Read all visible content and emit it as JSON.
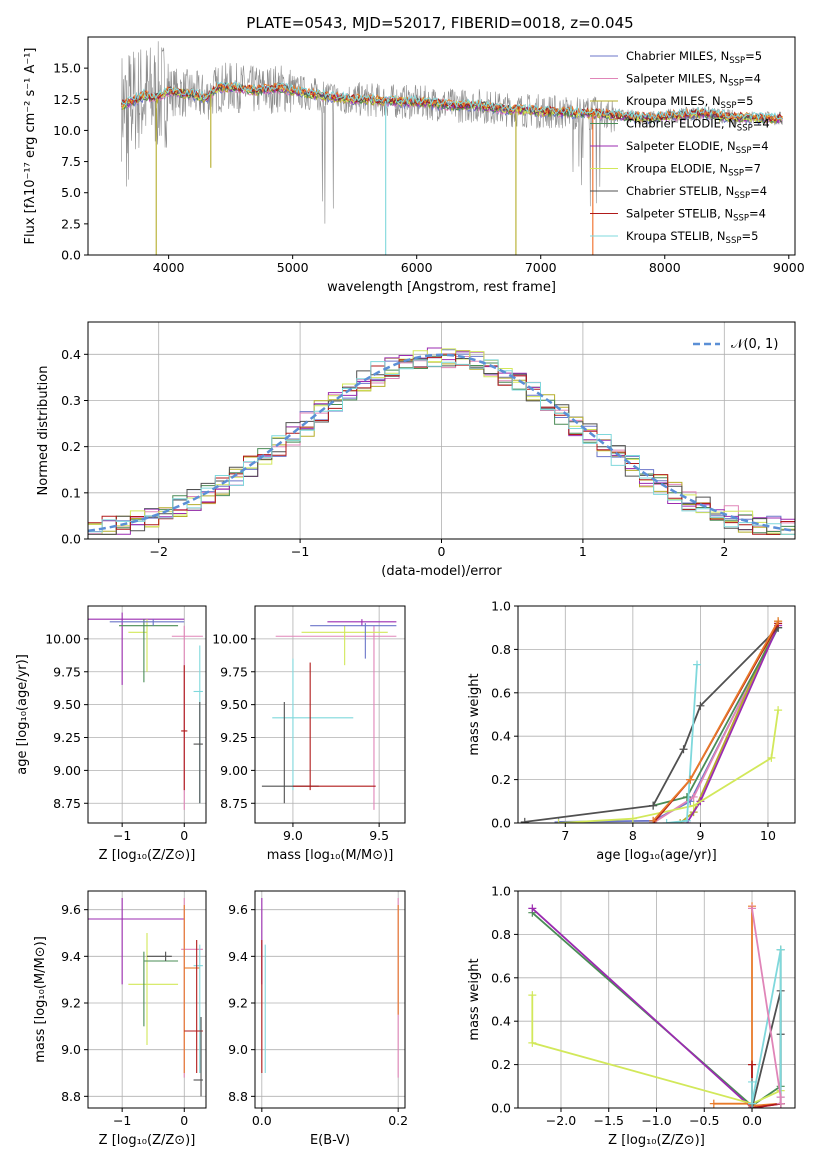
{
  "title": "PLATE=0543, MJD=52017, FIBERID=0018, z=0.045",
  "colors": {
    "series": [
      "#6b75c9",
      "#e085b8",
      "#b5ad2a",
      "#4a8c56",
      "#9b2bb0",
      "#d2e85a",
      "#505050",
      "#b01a1a",
      "#7fd8dc"
    ],
    "accent": [
      "#e87a2a",
      "#f06b24"
    ],
    "spectrum": "#8c8c8c",
    "normal": "#5b8fd6"
  },
  "legend": [
    {
      "text": "Chabrier MILES, N",
      "sub": "SSP",
      "n": "=5"
    },
    {
      "text": "Salpeter MILES, N",
      "sub": "SSP",
      "n": "=4"
    },
    {
      "text": "Kroupa MILES, N",
      "sub": "SSP",
      "n": "=5"
    },
    {
      "text": "Chabrier ELODIE, N",
      "sub": "SSP",
      "n": "=4"
    },
    {
      "text": "Salpeter ELODIE, N",
      "sub": "SSP",
      "n": "=4"
    },
    {
      "text": "Kroupa ELODIE, N",
      "sub": "SSP",
      "n": "=7"
    },
    {
      "text": "Chabrier STELIB, N",
      "sub": "SSP",
      "n": "=4"
    },
    {
      "text": "Salpeter STELIB, N",
      "sub": "SSP",
      "n": "=4"
    },
    {
      "text": "Kroupa STELIB, N",
      "sub": "SSP",
      "n": "=5"
    }
  ],
  "chart_data": [
    {
      "type": "line",
      "id": "spectrum",
      "title": "PLATE=0543, MJD=52017, FIBERID=0018, z=0.045",
      "xlabel": "wavelength [Angstrom, rest frame]",
      "ylabel": "Flux [fλ10⁻¹⁷ erg cm⁻² s⁻¹ A⁻¹]",
      "xlim": [
        3350,
        9050
      ],
      "ylim": [
        0,
        17.5
      ],
      "xticks": [
        4000,
        5000,
        6000,
        7000,
        8000,
        9000
      ],
      "yticks": [
        0.0,
        2.5,
        5.0,
        7.5,
        10.0,
        12.5,
        15.0
      ],
      "grid": false,
      "legend_position": "right",
      "continuum": {
        "x": [
          3620,
          3700,
          3800,
          3900,
          4000,
          4100,
          4200,
          4300,
          4400,
          4500,
          4700,
          4900,
          5100,
          5300,
          5500,
          5700,
          5900,
          6100,
          6300,
          6500,
          6700,
          6900,
          7100,
          7300,
          7500,
          7700,
          7900,
          8100,
          8300,
          8500,
          8700,
          8950
        ],
        "y": [
          12.0,
          12.3,
          12.8,
          12.6,
          13.2,
          13.0,
          12.9,
          12.6,
          13.4,
          13.5,
          13.2,
          13.4,
          13.0,
          12.7,
          12.5,
          12.4,
          12.3,
          12.2,
          12.0,
          12.0,
          11.7,
          11.6,
          11.5,
          11.4,
          11.3,
          11.1,
          11.0,
          11.2,
          11.4,
          11.1,
          11.0,
          10.9
        ]
      },
      "model_dips": [
        {
          "x": 3900,
          "y": 0.0
        },
        {
          "x": 4340,
          "y": 7.0
        },
        {
          "x": 5750,
          "y": 0.0
        },
        {
          "x": 6800,
          "y": 0.0
        },
        {
          "x": 7420,
          "y": 0.0
        }
      ]
    },
    {
      "type": "step",
      "id": "residuals",
      "xlabel": "(data-model)/error",
      "ylabel": "Normed distribution",
      "xlim": [
        -2.5,
        2.5
      ],
      "ylim": [
        0.0,
        0.47
      ],
      "xticks": [
        -2,
        -1,
        0,
        1,
        2
      ],
      "yticks": [
        0.0,
        0.1,
        0.2,
        0.3,
        0.4
      ],
      "grid": true,
      "legend_position": "top-right",
      "reference": {
        "name": "𝒩(0, 1)",
        "mean": 0,
        "sigma": 1
      },
      "bin_width": 0.1
    },
    {
      "type": "errorbar",
      "id": "age-vs-Z",
      "xlabel": "Z [log₁₀(Z/Z⊙)]",
      "ylabel": "age  [log₁₀(age/yr)]",
      "xlim": [
        -1.55,
        0.35
      ],
      "ylim": [
        8.6,
        10.25
      ],
      "xticks": [
        -1,
        0
      ],
      "yticks": [
        8.75,
        9.0,
        9.25,
        9.5,
        9.75,
        10.0
      ],
      "grid": true,
      "points": [
        {
          "s": 4,
          "x": -1.0,
          "y": 10.15,
          "xe": [
            -1.55,
            0.0
          ],
          "ye": [
            9.65,
            10.2
          ]
        },
        {
          "s": 5,
          "x": -0.6,
          "y": 10.05,
          "xe": [
            -0.9,
            -0.6
          ],
          "ye": [
            9.75,
            10.15
          ]
        },
        {
          "s": 3,
          "x": -0.65,
          "y": 10.1,
          "xe": [
            -1.05,
            -0.1
          ],
          "ye": [
            9.67,
            10.15
          ]
        },
        {
          "s": 0,
          "x": -0.5,
          "y": 10.13,
          "xe": [
            -1.2,
            0.0
          ],
          "ye": [
            10.1,
            10.15
          ]
        },
        {
          "s": 1,
          "x": 0.0,
          "y": 10.02,
          "xe": [
            -0.2,
            0.3
          ],
          "ye": [
            8.7,
            10.1
          ]
        },
        {
          "s": 8,
          "x": 0.25,
          "y": 9.6,
          "xe": [
            0.15,
            0.3
          ],
          "ye": [
            8.75,
            9.95
          ]
        },
        {
          "s": 6,
          "x": 0.25,
          "y": 9.2,
          "xe": [
            0.15,
            0.3
          ],
          "ye": [
            8.75,
            9.52
          ]
        },
        {
          "s": 7,
          "x": 0.0,
          "y": 9.3,
          "xe": [
            -0.05,
            0.05
          ],
          "ye": [
            8.85,
            9.8
          ]
        }
      ]
    },
    {
      "type": "errorbar",
      "id": "age-vs-mass",
      "xlabel": "mass [log₁₀(M/M⊙)]",
      "ylabel": "",
      "xlim": [
        8.78,
        9.65
      ],
      "ylim": [
        8.6,
        10.25
      ],
      "xticks": [
        9.0,
        9.5
      ],
      "yticks": [
        8.75,
        9.0,
        9.25,
        9.5,
        9.75,
        10.0
      ],
      "grid": true,
      "points": [
        {
          "s": 1,
          "x": 9.47,
          "y": 10.02,
          "xe": [
            8.9,
            9.6
          ],
          "ye": [
            8.7,
            10.1
          ]
        },
        {
          "s": 5,
          "x": 9.3,
          "y": 10.05,
          "xe": [
            9.05,
            9.55
          ],
          "ye": [
            9.8,
            10.1
          ]
        },
        {
          "s": 4,
          "x": 9.4,
          "y": 10.13,
          "xe": [
            9.2,
            9.6
          ],
          "ye": [
            10.1,
            10.15
          ]
        },
        {
          "s": 0,
          "x": 9.42,
          "y": 10.1,
          "xe": [
            9.1,
            9.6
          ],
          "ye": [
            9.85,
            10.12
          ]
        },
        {
          "s": 8,
          "x": 9.0,
          "y": 9.4,
          "xe": [
            8.88,
            9.35
          ],
          "ye": [
            8.85,
            9.85
          ]
        },
        {
          "s": 6,
          "x": 8.95,
          "y": 8.88,
          "xe": [
            8.82,
            9.15
          ],
          "ye": [
            8.75,
            9.52
          ]
        },
        {
          "s": 7,
          "x": 9.1,
          "y": 8.88,
          "xe": [
            9.0,
            9.48
          ],
          "ye": [
            8.85,
            9.82
          ]
        }
      ]
    },
    {
      "type": "line",
      "id": "weight-vs-age",
      "xlabel": "age  [log₁₀(age/yr)]",
      "ylabel": "mass weight",
      "xlim": [
        6.3,
        10.4
      ],
      "ylim": [
        0.0,
        1.0
      ],
      "xticks": [
        7,
        8,
        9,
        10
      ],
      "yticks": [
        0.0,
        0.2,
        0.4,
        0.6,
        0.8,
        1.0
      ],
      "grid": true,
      "series": [
        {
          "s": 0,
          "x": [
            6.9,
            8.3,
            8.85,
            10.15
          ],
          "y": [
            0.005,
            0.01,
            0.1,
            0.9
          ]
        },
        {
          "s": 1,
          "x": [
            8.3,
            8.9,
            10.15
          ],
          "y": [
            0.0,
            0.12,
            0.91
          ]
        },
        {
          "s": 2,
          "x": [
            8.7,
            8.9,
            10.15
          ],
          "y": [
            0.0,
            0.05,
            0.93
          ]
        },
        {
          "s": 3,
          "x": [
            8.3,
            8.8,
            10.15
          ],
          "y": [
            0.08,
            0.12,
            0.9
          ]
        },
        {
          "s": 4,
          "x": [
            8.8,
            9.0,
            10.15
          ],
          "y": [
            0.0,
            0.1,
            0.91
          ]
        },
        {
          "s": 5,
          "x": [
            6.9,
            8.0,
            8.9,
            10.05,
            10.15
          ],
          "y": [
            0.0,
            0.02,
            0.08,
            0.3,
            0.52
          ]
        },
        {
          "s": 6,
          "x": [
            6.4,
            8.3,
            8.75,
            9.0,
            10.15
          ],
          "y": [
            0.005,
            0.08,
            0.34,
            0.54,
            0.9
          ]
        },
        {
          "s": 7,
          "x": [
            8.3,
            8.85,
            10.15
          ],
          "y": [
            0.0,
            0.2,
            0.92
          ]
        },
        {
          "s": 8,
          "x": [
            8.5,
            8.8,
            8.95
          ],
          "y": [
            0.0,
            0.01,
            0.73
          ]
        },
        {
          "s": 9,
          "x": [
            8.3,
            8.85,
            10.15
          ],
          "y": [
            0.01,
            0.2,
            0.93
          ]
        }
      ]
    },
    {
      "type": "errorbar",
      "id": "mass-vs-Z",
      "xlabel": "Z [log₁₀(Z/Z⊙)]",
      "ylabel": "mass [log₁₀(M/M⊙)]",
      "xlim": [
        -1.55,
        0.35
      ],
      "ylim": [
        8.75,
        9.68
      ],
      "xticks": [
        -1,
        0
      ],
      "yticks": [
        8.8,
        9.0,
        9.2,
        9.4,
        9.6
      ],
      "grid": true,
      "points": [
        {
          "s": 4,
          "x": -1.0,
          "y": 9.56,
          "xe": [
            -1.55,
            0.0
          ],
          "ye": [
            9.28,
            9.65
          ]
        },
        {
          "s": 5,
          "x": -0.6,
          "y": 9.28,
          "xe": [
            -0.9,
            -0.1
          ],
          "ye": [
            9.02,
            9.5
          ]
        },
        {
          "s": 3,
          "x": -0.65,
          "y": 9.38,
          "xe": [
            -0.65,
            -0.1
          ],
          "ye": [
            9.1,
            9.42
          ]
        },
        {
          "s": 6,
          "x": -0.3,
          "y": 9.4,
          "xe": [
            -0.6,
            -0.2
          ],
          "ye": [
            9.38,
            9.42
          ]
        },
        {
          "s": 1,
          "x": 0.0,
          "y": 9.43,
          "xe": [
            -0.05,
            0.3
          ],
          "ye": [
            8.88,
            9.65
          ]
        },
        {
          "s": 9,
          "x": 0.0,
          "y": 9.35,
          "xe": [
            0.0,
            0.25
          ],
          "ye": [
            8.9,
            9.62
          ]
        },
        {
          "s": 8,
          "x": 0.25,
          "y": 9.36,
          "xe": [
            0.15,
            0.3
          ],
          "ye": [
            8.9,
            9.45
          ]
        },
        {
          "s": 7,
          "x": 0.2,
          "y": 9.08,
          "xe": [
            0.0,
            0.3
          ],
          "ye": [
            8.9,
            9.47
          ]
        },
        {
          "s": 6,
          "x": 0.27,
          "y": 8.87,
          "xe": [
            0.15,
            0.3
          ],
          "ye": [
            8.8,
            9.14
          ]
        }
      ]
    },
    {
      "type": "errorbar",
      "id": "mass-vs-ebv",
      "xlabel": "E(B-V)",
      "ylabel": "",
      "xlim": [
        -0.01,
        0.21
      ],
      "ylim": [
        8.75,
        9.68
      ],
      "xticks": [
        0.0,
        0.2
      ],
      "yticks": [
        8.8,
        9.0,
        9.2,
        9.4,
        9.6
      ],
      "grid": true,
      "points": [
        {
          "s": 4,
          "x": 0.0,
          "y": 9.56,
          "xe": [
            0.0,
            0.0
          ],
          "ye": [
            9.28,
            9.65
          ]
        },
        {
          "s": 7,
          "x": 0.0,
          "y": 9.2,
          "xe": [
            0.0,
            0.0
          ],
          "ye": [
            8.9,
            9.47
          ]
        },
        {
          "s": 8,
          "x": 0.005,
          "y": 9.2,
          "xe": [
            0.005,
            0.005
          ],
          "ye": [
            8.9,
            9.45
          ]
        },
        {
          "s": 1,
          "x": 0.2,
          "y": 9.3,
          "xe": [
            0.2,
            0.2
          ],
          "ye": [
            8.88,
            9.65
          ]
        },
        {
          "s": 9,
          "x": 0.2,
          "y": 9.4,
          "xe": [
            0.2,
            0.2
          ],
          "ye": [
            9.15,
            9.62
          ]
        }
      ]
    },
    {
      "type": "line",
      "id": "weight-vs-Z",
      "xlabel": "Z [log₁₀(Z/Z⊙)]",
      "ylabel": "mass weight",
      "xlim": [
        -2.45,
        0.45
      ],
      "ylim": [
        0.0,
        1.0
      ],
      "xticks": [
        -2.0,
        -1.5,
        -1.0,
        -0.5,
        0.0
      ],
      "ytick_values": [
        0.0,
        0.2,
        0.4,
        0.6,
        0.8,
        1.0
      ],
      "grid": true,
      "series": [
        {
          "s": 3,
          "x": [
            -2.3,
            0.0,
            0.3,
            0.3
          ],
          "y": [
            0.9,
            0.01,
            0.1,
            0.73
          ]
        },
        {
          "s": 4,
          "x": [
            -2.3,
            0.0,
            0.3
          ],
          "y": [
            0.92,
            0.0,
            0.02
          ]
        },
        {
          "s": 5,
          "x": [
            -2.3,
            -2.3,
            0.0,
            0.3
          ],
          "y": [
            0.52,
            0.3,
            0.02,
            0.08
          ]
        },
        {
          "s": 9,
          "x": [
            -0.4,
            0.0,
            0.0,
            0.0,
            0.3
          ],
          "y": [
            0.02,
            0.02,
            0.93,
            0.01,
            0.02
          ]
        },
        {
          "s": 7,
          "x": [
            0.0,
            0.0,
            0.3
          ],
          "y": [
            0.2,
            0.0,
            0.02
          ]
        },
        {
          "s": 6,
          "x": [
            0.0,
            0.3,
            0.3,
            0.3
          ],
          "y": [
            0.0,
            0.54,
            0.34,
            0.02
          ]
        },
        {
          "s": 8,
          "x": [
            0.0,
            0.0,
            0.3,
            0.3
          ],
          "y": [
            0.12,
            0.02,
            0.73,
            0.05
          ]
        },
        {
          "s": 1,
          "x": [
            0.0,
            0.3,
            0.3
          ],
          "y": [
            0.92,
            0.05,
            0.02
          ]
        }
      ]
    }
  ]
}
